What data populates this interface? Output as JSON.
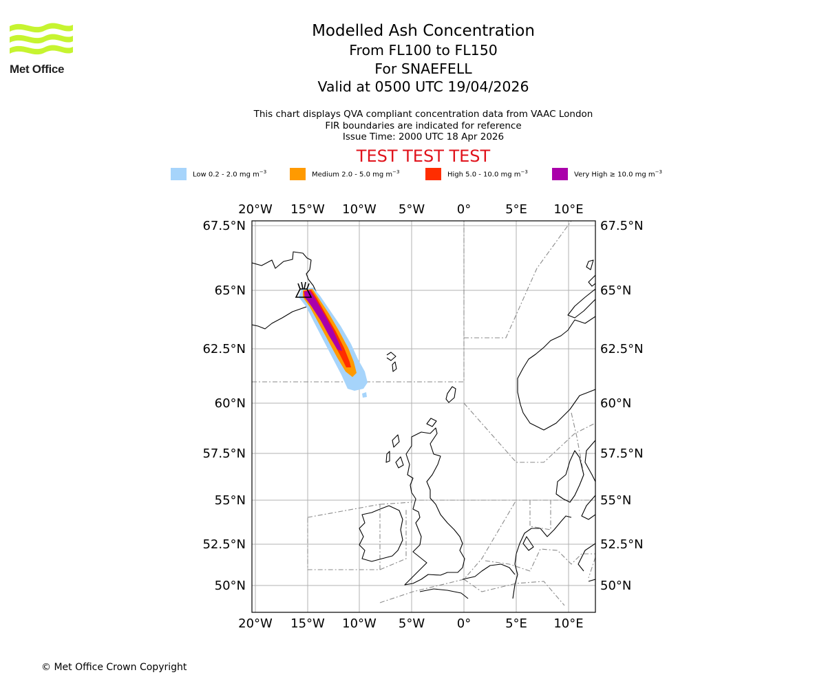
{
  "logo": {
    "name": "Met Office"
  },
  "title": {
    "main": "Modelled Ash Concentration",
    "levels": "From FL100 to FL150",
    "volcano": "For SNAEFELL",
    "valid": "Valid at 0500 UTC 19/04/2026"
  },
  "subtitle": {
    "line1": "This chart displays QVA compliant concentration data from VAAC London",
    "line2": "FIR boundaries are indicated for reference",
    "line3": "Issue Time: 2000 UTC 18 Apr 2026"
  },
  "banner": "TEST TEST TEST",
  "legend": [
    {
      "name": "Low",
      "range": "0.2 - 2.0",
      "color": "#a6d4fb"
    },
    {
      "name": "Medium",
      "range": "2.0 - 5.0",
      "color": "#ff9a00"
    },
    {
      "name": "High",
      "range": "5.0 - 10.0",
      "color": "#ff2d00"
    },
    {
      "name": "Very High",
      "range": "≥ 10.0",
      "color": "#aa00aa"
    }
  ],
  "unit": {
    "base": "mg m",
    "exp": "−3"
  },
  "axes": {
    "lon_labels": [
      "20°W",
      "15°W",
      "10°W",
      "5°W",
      "0°",
      "5°E",
      "10°E"
    ],
    "lat_labels": [
      "67.5°N",
      "65°N",
      "62.5°N",
      "60°N",
      "57.5°N",
      "55°N",
      "52.5°N",
      "50°N"
    ]
  },
  "volcano_marker": "volcano-icon",
  "copyright": "© Met Office Crown Copyright"
}
